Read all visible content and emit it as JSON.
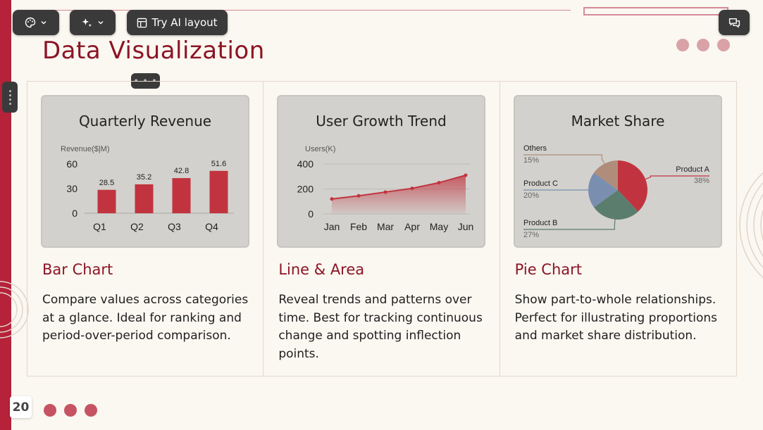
{
  "slide": {
    "title": "Data Visualization",
    "page_number": "20"
  },
  "toolbar": {
    "theme_icon": "palette-icon",
    "magic_icon": "sparkle-icon",
    "ai_layout_label": "Try AI layout",
    "chat_icon": "chat-icon"
  },
  "colors": {
    "accent": "#b5223a",
    "title": "#8b1525",
    "bar": "#c1343f",
    "teal": "#5b7d6e",
    "blue": "#7a8fb0",
    "tan": "#b08d7a"
  },
  "cards": [
    {
      "heading": "Bar Chart",
      "description": "Compare values across categories at a glance. Ideal for ranking and period-over-period comparison."
    },
    {
      "heading": "Line & Area",
      "description": "Reveal trends and patterns over time. Best for tracking continuous change and spotting inflection points."
    },
    {
      "heading": "Pie Chart",
      "description": "Show part-to-whole relationships. Perfect for illustrating proportions and market share distribution."
    }
  ],
  "chart_data": [
    {
      "type": "bar",
      "title": "Quarterly Revenue",
      "ylabel": "Revenue($|M)",
      "categories": [
        "Q1",
        "Q2",
        "Q3",
        "Q4"
      ],
      "values": [
        28.5,
        35.2,
        42.8,
        51.6
      ],
      "value_labels": [
        "28.5",
        "35.2",
        "42.8",
        "51.6"
      ],
      "ylim": [
        0,
        60
      ],
      "yticks": [
        "0",
        "30",
        "60"
      ]
    },
    {
      "type": "area",
      "title": "User Growth Trend",
      "ylabel": "Users(K)",
      "categories": [
        "Jan",
        "Feb",
        "Mar",
        "Apr",
        "May",
        "Jun"
      ],
      "values": [
        120,
        145,
        175,
        205,
        250,
        310
      ],
      "ylim": [
        0,
        400
      ],
      "yticks": [
        "0",
        "200",
        "400"
      ]
    },
    {
      "type": "pie",
      "title": "Market Share",
      "slices": [
        {
          "name": "Product A",
          "label": "38%",
          "value": 38,
          "color": "#c1343f"
        },
        {
          "name": "Product B",
          "label": "27%",
          "value": 27,
          "color": "#5b7d6e"
        },
        {
          "name": "Product C",
          "label": "20%",
          "value": 20,
          "color": "#7a8fb0"
        },
        {
          "name": "Others",
          "label": "15%",
          "value": 15,
          "color": "#b08d7a"
        }
      ]
    }
  ]
}
